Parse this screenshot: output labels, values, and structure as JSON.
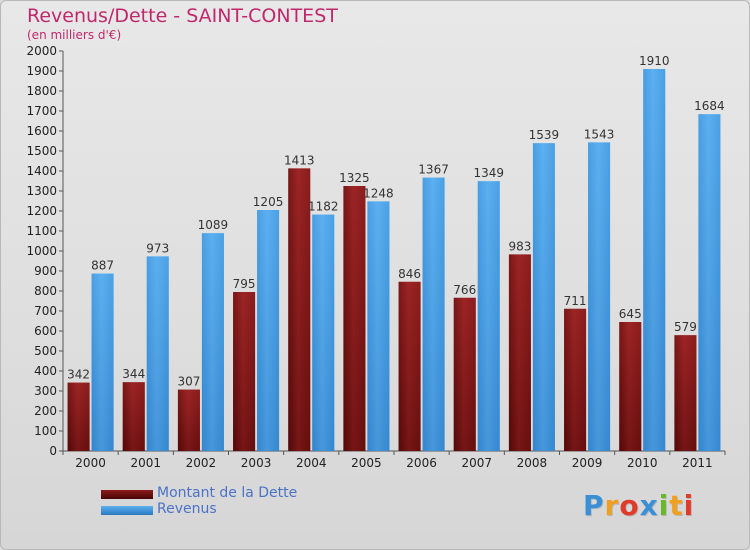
{
  "header": {
    "title": "Revenus/Dette - SAINT-CONTEST",
    "subtitle": "(en milliers d'€)"
  },
  "logo": {
    "text": "Proxiti",
    "letters": [
      {
        "char": "P",
        "color": "#3a8fd6"
      },
      {
        "char": "r",
        "color": "#f0a020"
      },
      {
        "char": "o",
        "color": "#e03a2a"
      },
      {
        "char": "x",
        "color": "#3a8fd6"
      },
      {
        "char": "i",
        "color": "#6ab82a"
      },
      {
        "char": "t",
        "color": "#f0a020"
      },
      {
        "char": "i",
        "color": "#e03a2a"
      }
    ]
  },
  "legend": {
    "debt_label": "Montant de la Dette",
    "revenue_label": "Revenus"
  },
  "colors": {
    "debt": "#8b1a1a",
    "revenue": "#4aa3e8"
  },
  "chart_data": {
    "type": "bar",
    "title": "Revenus/Dette - SAINT-CONTEST",
    "subtitle": "(en milliers d'€)",
    "categories": [
      "2000",
      "2001",
      "2002",
      "2003",
      "2004",
      "2005",
      "2006",
      "2007",
      "2008",
      "2009",
      "2010",
      "2011"
    ],
    "series": [
      {
        "name": "Montant de la Dette",
        "values": [
          342,
          344,
          307,
          795,
          1413,
          1325,
          846,
          766,
          983,
          711,
          645,
          579
        ]
      },
      {
        "name": "Revenus",
        "values": [
          887,
          973,
          1089,
          1205,
          1182,
          1248,
          1367,
          1349,
          1539,
          1543,
          1910,
          1684
        ]
      }
    ],
    "ylim": [
      0,
      2000
    ],
    "ytick_step": 100,
    "grid": false,
    "legend_position": "bottom-left"
  }
}
